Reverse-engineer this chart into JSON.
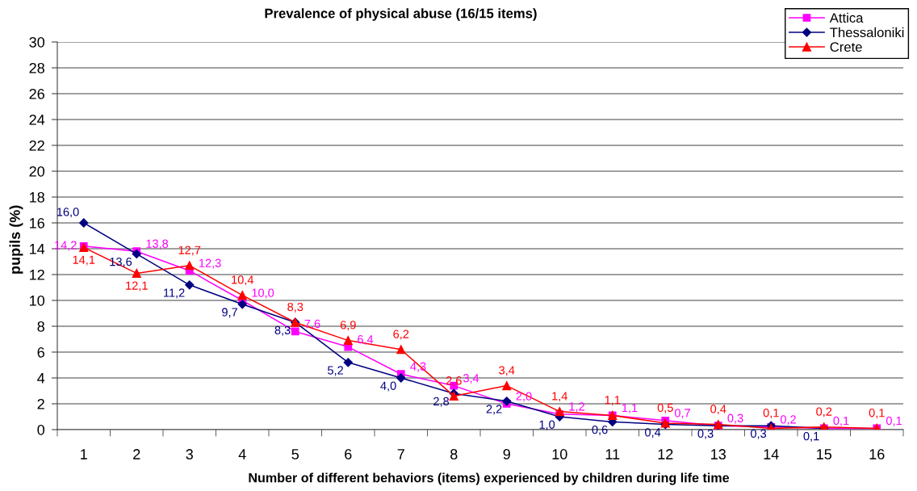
{
  "chart_data": {
    "type": "line",
    "title": "Prevalence of physical abuse (16/15 items)",
    "xlabel": "Number of different behaviors (items) experienced by children during life time",
    "ylabel": "pupils (%)",
    "categories": [
      "1",
      "2",
      "3",
      "4",
      "5",
      "6",
      "7",
      "8",
      "9",
      "10",
      "11",
      "12",
      "13",
      "14",
      "15",
      "16"
    ],
    "series": [
      {
        "name": "Attica",
        "color": "#ff00ff",
        "marker": "square",
        "values": [
          14.2,
          13.8,
          12.3,
          10.0,
          7.6,
          6.4,
          4.3,
          3.4,
          2.0,
          1.2,
          1.1,
          0.7,
          0.3,
          0.2,
          0.1,
          0.1
        ],
        "value_labels": [
          "14,2",
          "13,8",
          "12,3",
          "10,0",
          "7,6",
          "6,4",
          "4,3",
          "3,4",
          "2,0",
          "1,2",
          "1,1",
          "0,7",
          "0,3",
          "0,2",
          "0,1",
          "0,1"
        ]
      },
      {
        "name": "Thessaloniki",
        "color": "#000080",
        "marker": "diamond",
        "values": [
          16.0,
          13.6,
          11.2,
          9.7,
          8.3,
          5.2,
          4.0,
          2.8,
          2.2,
          1.0,
          0.6,
          0.4,
          0.3,
          0.3,
          0.1,
          null
        ],
        "value_labels": [
          "16,0",
          "13,6",
          "11,2",
          "9,7",
          "8,3",
          "5,2",
          "4,0",
          "2,8",
          "2,2",
          "1,0",
          "0,6",
          "0,4",
          "0,3",
          "0,3",
          "0,1",
          null
        ]
      },
      {
        "name": "Crete",
        "color": "#ff0000",
        "marker": "triangle",
        "values": [
          14.1,
          12.1,
          12.7,
          10.4,
          8.3,
          6.9,
          6.2,
          2.6,
          3.4,
          1.4,
          1.1,
          0.5,
          0.4,
          0.1,
          0.2,
          0.1
        ],
        "value_labels": [
          "14,1",
          "12,1",
          "12,7",
          "10,4",
          "8,3",
          "6,9",
          "6,2",
          "2,6",
          "3,4",
          "1,4",
          "1,1",
          "0,5",
          "0,4",
          "0,1",
          "0,2",
          "0,1"
        ]
      }
    ],
    "ylim": [
      0,
      30
    ],
    "yticks": [
      0,
      2,
      4,
      6,
      8,
      10,
      12,
      14,
      16,
      18,
      20,
      22,
      24,
      26,
      28,
      30
    ],
    "grid": "y",
    "legend": "top right",
    "line_style": "solid"
  }
}
